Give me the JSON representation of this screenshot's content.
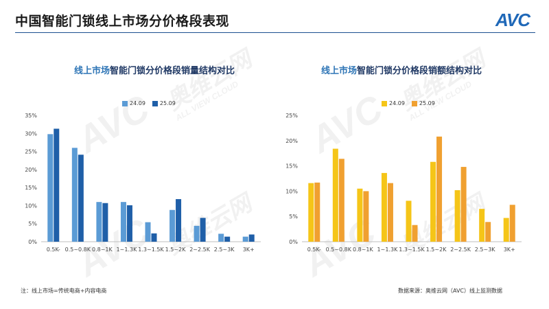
{
  "header": {
    "title": "中国智能门锁线上市场分价格段表现",
    "logo_text": "AVC"
  },
  "watermark": {
    "brand": "AVC",
    "name": "奥维云网",
    "sub": "ALL VIEW CLOUD"
  },
  "colors": {
    "left_24": "#5b9bd5",
    "left_25": "#1f5fa8",
    "right_24": "#f5c518",
    "right_25": "#f0a030",
    "accent": "#1a4f8f"
  },
  "chart_data": [
    {
      "type": "bar",
      "title_highlight": "线上市场",
      "title_rest": "智能门锁分价格段销量结构对比",
      "categories": [
        "0.5K-",
        "0.5~0.8K",
        "0.8~1K",
        "1~1.3K",
        "1.3~1.5K",
        "1.5~2K",
        "2~2.5K",
        "2.5~3K",
        "3K+"
      ],
      "series": [
        {
          "name": "24.09",
          "values": [
            29.8,
            26.0,
            11.0,
            11.0,
            5.4,
            8.8,
            4.4,
            2.2,
            1.4
          ]
        },
        {
          "name": "25.09",
          "values": [
            31.3,
            24.1,
            10.7,
            10.1,
            2.3,
            11.8,
            6.6,
            1.4,
            2.0
          ]
        }
      ],
      "ylim": [
        0,
        35
      ],
      "yticks": [
        "0%",
        "5%",
        "10%",
        "15%",
        "20%",
        "25%",
        "30%",
        "35%"
      ],
      "legend_position": "top-left",
      "grid": false
    },
    {
      "type": "bar",
      "title_highlight": "线上市场",
      "title_rest": "智能门锁分价格段销额结构对比",
      "categories": [
        "0.5K-",
        "0.5~0.8K",
        "0.8~1K",
        "1~1.3K",
        "1.3~1.5K",
        "1.5~2K",
        "2~2.5K",
        "2.5~3K",
        "3K+"
      ],
      "series": [
        {
          "name": "24.09",
          "values": [
            11.6,
            18.4,
            10.5,
            13.6,
            8.1,
            15.8,
            10.2,
            6.5,
            4.7
          ]
        },
        {
          "name": "25.09",
          "values": [
            11.7,
            16.4,
            10.0,
            11.6,
            3.3,
            20.8,
            14.8,
            3.9,
            7.3
          ]
        }
      ],
      "ylim": [
        0,
        25
      ],
      "yticks": [
        "0%",
        "5%",
        "10%",
        "15%",
        "20%",
        "25%"
      ],
      "legend_position": "top-center",
      "grid": false
    }
  ],
  "footer": {
    "note": "注：线上市场=传统电商+内容电商",
    "source": "数据来源：奥维云网（AVC）线上监测数据"
  }
}
